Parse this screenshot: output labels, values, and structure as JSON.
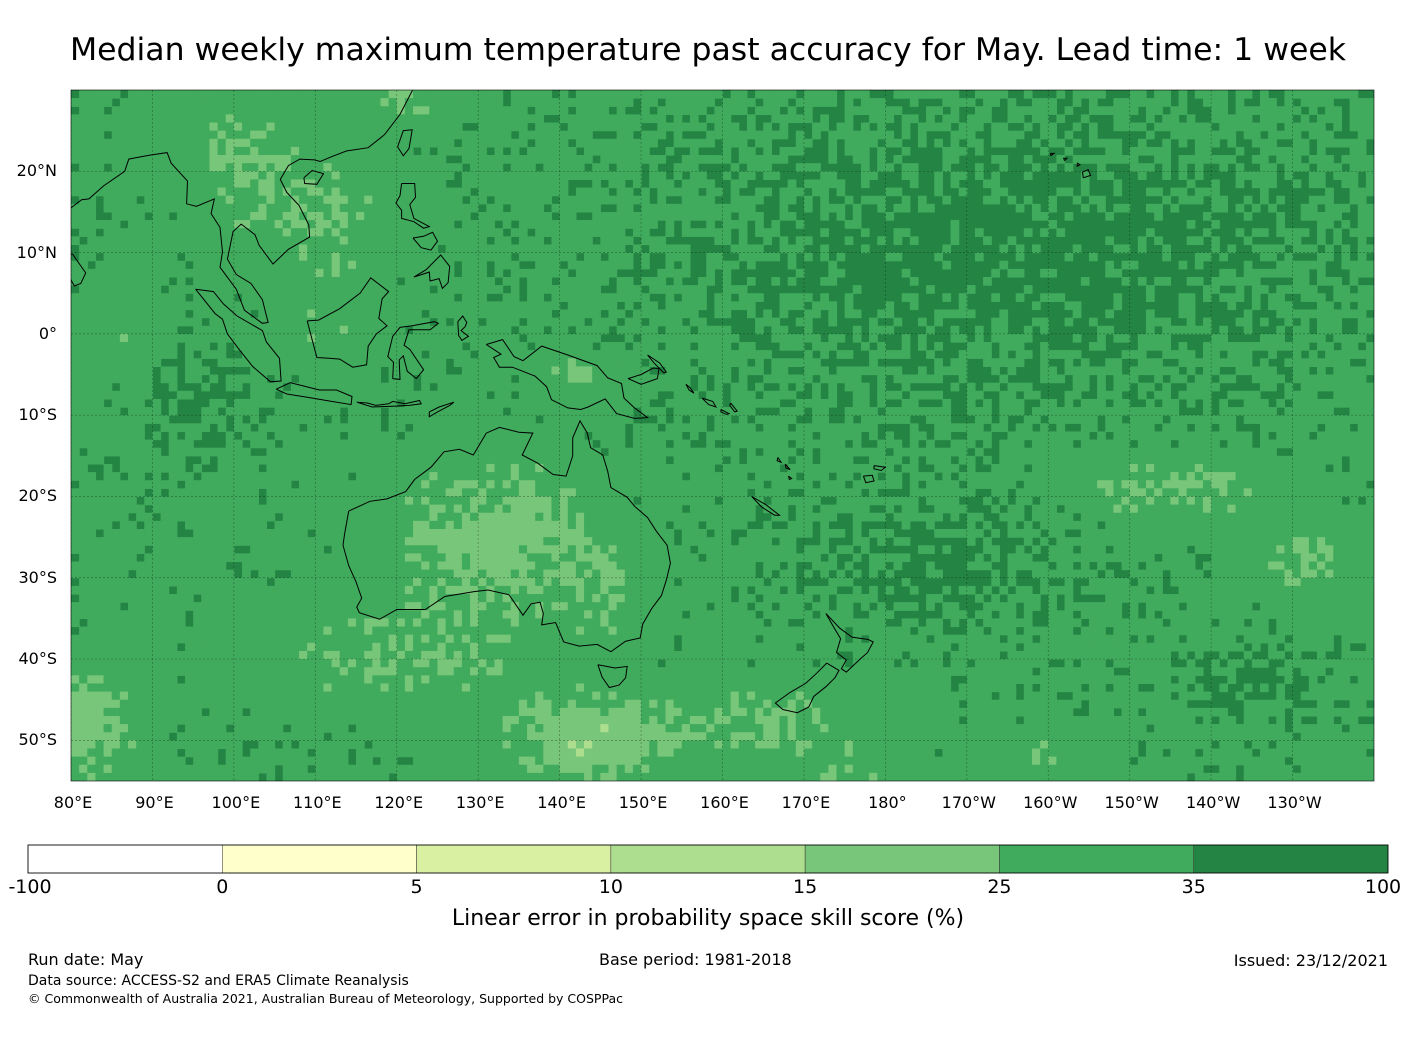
{
  "title": "Median weekly maximum temperature past accuracy for May. Lead time: 1 week",
  "map": {
    "projection": "equirectangular",
    "extent": {
      "lon_min": 80,
      "lon_max": 240,
      "lat_min": -55,
      "lat_max": 30
    },
    "lat_labels": [
      "20°N",
      "10°N",
      "0°",
      "10°S",
      "20°S",
      "30°S",
      "40°S",
      "50°S"
    ],
    "lat_values": [
      20,
      10,
      0,
      -10,
      -20,
      -30,
      -40,
      -50
    ],
    "lon_labels": [
      "80°E",
      "90°E",
      "100°E",
      "110°E",
      "120°E",
      "130°E",
      "140°E",
      "150°E",
      "160°E",
      "170°E",
      "180°",
      "170°W",
      "160°W",
      "150°W",
      "140°W",
      "130°W"
    ],
    "lon_values": [
      80,
      90,
      100,
      110,
      120,
      130,
      140,
      150,
      160,
      170,
      180,
      190,
      200,
      210,
      220,
      230
    ],
    "base_ocean_color": "#238443",
    "field_description_levels": [
      {
        "lon": 170,
        "lat": 20,
        "class": 6
      },
      {
        "lon": 132,
        "lat": -25,
        "class": 4
      }
    ]
  },
  "colorbar": {
    "ticks": [
      "-100",
      "0",
      "5",
      "10",
      "15",
      "25",
      "35",
      "100"
    ],
    "colors": [
      "#ffffff",
      "#ffffcc",
      "#d9f0a3",
      "#addd8e",
      "#78c679",
      "#41ab5d",
      "#238443"
    ],
    "label": "Linear error in probability space skill score (%)"
  },
  "footer": {
    "run_date": "Run date: May",
    "base_period": "Base period: 1981-2018",
    "issued": "Issued: 23/12/2021",
    "data_source": "Data source: ACCESS-S2 and ERA5 Climate Reanalysis",
    "copyright": "© Commonwealth of Australia 2021, Australian Bureau of Meteorology, Supported by COSPPac"
  }
}
